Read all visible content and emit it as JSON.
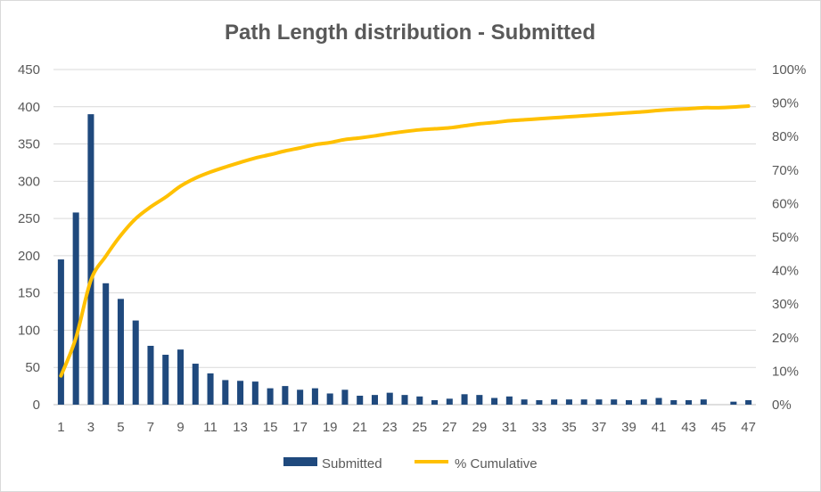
{
  "chart_data": {
    "type": "bar",
    "title": "Path Length distribution - Submitted",
    "xlabel": "",
    "ylabel": "",
    "categories": [
      1,
      2,
      3,
      4,
      5,
      6,
      7,
      8,
      9,
      10,
      11,
      12,
      13,
      14,
      15,
      16,
      17,
      18,
      19,
      20,
      21,
      22,
      23,
      24,
      25,
      26,
      27,
      28,
      29,
      30,
      31,
      32,
      33,
      34,
      35,
      36,
      37,
      38,
      39,
      40,
      41,
      42,
      43,
      44,
      45,
      46,
      47
    ],
    "x_tick_labels": [
      "1",
      "3",
      "5",
      "7",
      "9",
      "11",
      "13",
      "15",
      "17",
      "19",
      "21",
      "23",
      "25",
      "27",
      "29",
      "31",
      "33",
      "35",
      "37",
      "39",
      "41",
      "43",
      "45",
      "47"
    ],
    "ylim": [
      0,
      450
    ],
    "y_ticks": [
      0,
      50,
      100,
      150,
      200,
      250,
      300,
      350,
      400,
      450
    ],
    "y2lim": [
      0,
      1
    ],
    "y2_ticks": [
      "0%",
      "10%",
      "20%",
      "30%",
      "40%",
      "50%",
      "60%",
      "70%",
      "80%",
      "90%",
      "100%"
    ],
    "grid": "horizontal",
    "legend_position": "bottom",
    "series": [
      {
        "name": "Submitted",
        "kind": "bar",
        "axis": "left",
        "color": "#1f497d",
        "values": [
          195,
          258,
          390,
          163,
          142,
          113,
          79,
          67,
          74,
          55,
          42,
          33,
          32,
          31,
          22,
          25,
          20,
          22,
          15,
          20,
          12,
          13,
          16,
          13,
          11,
          6,
          8,
          14,
          13,
          9,
          11,
          7,
          6,
          7,
          7,
          7,
          7,
          7,
          6,
          7,
          9,
          6,
          6,
          7,
          0,
          4,
          6
        ]
      },
      {
        "name": "% Cumulative",
        "kind": "line",
        "axis": "right",
        "color": "#ffc000",
        "values": [
          0.086,
          0.199,
          0.371,
          0.443,
          0.505,
          0.555,
          0.59,
          0.619,
          0.652,
          0.676,
          0.694,
          0.709,
          0.723,
          0.736,
          0.746,
          0.757,
          0.766,
          0.776,
          0.782,
          0.791,
          0.796,
          0.802,
          0.809,
          0.815,
          0.82,
          0.823,
          0.826,
          0.832,
          0.838,
          0.842,
          0.847,
          0.85,
          0.853,
          0.856,
          0.859,
          0.862,
          0.865,
          0.868,
          0.871,
          0.874,
          0.878,
          0.881,
          0.883,
          0.886,
          0.886,
          0.888,
          0.891
        ]
      }
    ]
  }
}
